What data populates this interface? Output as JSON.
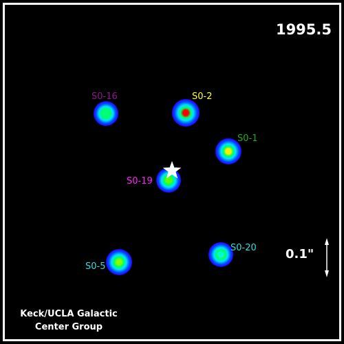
{
  "epoch": "1995.5",
  "stars": [
    {
      "id": "s0-16",
      "label": "S0-16",
      "label_color": "#8a1a8a",
      "core": "#00ff80"
    },
    {
      "id": "s0-2",
      "label": "S0-2",
      "label_color": "#ffff33",
      "core": "#ff0000"
    },
    {
      "id": "s0-1",
      "label": "S0-1",
      "label_color": "#22aa22",
      "core": "#ffee00"
    },
    {
      "id": "s0-19",
      "label": "S0-19",
      "label_color": "#ff22ff",
      "core": "#66ff00"
    },
    {
      "id": "s0-5",
      "label": "S0-5",
      "label_color": "#33dddd",
      "core": "#88ff00"
    },
    {
      "id": "s0-20",
      "label": "S0-20",
      "label_color": "#33dddd",
      "core": "#00ffd0"
    }
  ],
  "marker_icon": "five-point-star-icon",
  "scale_bar": {
    "label": "0.1\"",
    "icon": "double-arrow-icon"
  },
  "credit": {
    "line1": "Keck/UCLA Galactic",
    "line2": "Center Group"
  },
  "colors": {
    "background": "#000000",
    "border": "#ffffff",
    "text": "#ffffff"
  }
}
